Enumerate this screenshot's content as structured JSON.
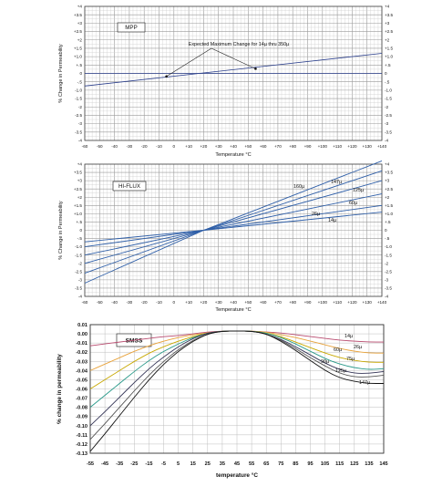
{
  "chart_data": [
    {
      "type": "line",
      "title": "MPP",
      "xlabel": "Temperature °C",
      "ylabel": "% Change in Permeability",
      "x_ticks": [
        "-60",
        "-50",
        "-40",
        "-30",
        "-20",
        "-10",
        "0",
        "+10",
        "+20",
        "+30",
        "+40",
        "+50",
        "+60",
        "+70",
        "+80",
        "+90",
        "+100",
        "+110",
        "+120",
        "+130",
        "+140"
      ],
      "y_ticks": [
        "+4",
        "+3.5",
        "+3",
        "+2.5",
        "+2",
        "+1.5",
        "+1.0",
        "+.5",
        "0",
        "-.5",
        "-1.0",
        "-1.5",
        "-2",
        "-2.5",
        "-3",
        "-3.5",
        "-4"
      ],
      "xlim": [
        -60,
        140
      ],
      "ylim": [
        -4,
        4
      ],
      "grid": true,
      "annotation": "Expected Maximum Change for 14µ thru 350µ",
      "series": [
        {
          "x": [
            -60,
            140
          ],
          "y": [
            -0.75,
            1.2
          ]
        },
        {
          "x": [
            -60,
            140
          ],
          "y": [
            0,
            0
          ]
        }
      ],
      "markers": [
        {
          "x": -5,
          "y": -0.18
        },
        {
          "x": 55,
          "y": 0.28
        }
      ]
    },
    {
      "type": "line",
      "title": "HI-FLUX",
      "xlabel": "Temperature °C",
      "ylabel": "% Change in Permeability",
      "x_ticks": [
        "-60",
        "-50",
        "-40",
        "-30",
        "-20",
        "-10",
        "0",
        "+10",
        "+20",
        "+30",
        "+40",
        "+50",
        "+60",
        "+70",
        "+80",
        "+90",
        "+100",
        "+110",
        "+120",
        "+130",
        "+140"
      ],
      "y_ticks": [
        "+4",
        "+3.5",
        "+3",
        "+2.5",
        "+2",
        "+1.5",
        "+1.0",
        "+.5",
        "0",
        "-.5",
        "-1.0",
        "-1.5",
        "-2",
        "-2.5",
        "-3",
        "-3.5",
        "-4"
      ],
      "xlim": [
        -60,
        140
      ],
      "ylim": [
        -4,
        4
      ],
      "grid": true,
      "series": [
        {
          "name": "160µ",
          "x": [
            -60,
            20,
            140
          ],
          "y": [
            -3.2,
            0,
            4.2
          ]
        },
        {
          "name": "147µ",
          "x": [
            -60,
            20,
            140
          ],
          "y": [
            -2.6,
            0,
            3.6
          ]
        },
        {
          "name": "125µ",
          "x": [
            -60,
            20,
            140
          ],
          "y": [
            -2.0,
            0,
            3.0
          ]
        },
        {
          "name": "60µ",
          "x": [
            -60,
            20,
            140
          ],
          "y": [
            -1.5,
            0,
            2.2
          ]
        },
        {
          "name": "26µ",
          "x": [
            -60,
            20,
            140
          ],
          "y": [
            -1.0,
            0,
            1.5
          ]
        },
        {
          "name": "14µ",
          "x": [
            -60,
            20,
            140
          ],
          "y": [
            -0.7,
            0,
            1.1
          ]
        }
      ]
    },
    {
      "type": "line",
      "title": "SMSS",
      "xlabel": "temperature °C",
      "ylabel": "% change in permeability",
      "x_ticks": [
        "-55",
        "-45",
        "-35",
        "-25",
        "-15",
        "-5",
        "5",
        "15",
        "25",
        "35",
        "45",
        "55",
        "65",
        "75",
        "85",
        "95",
        "105",
        "115",
        "125",
        "135",
        "145"
      ],
      "y_ticks": [
        "0.01",
        "0.00",
        "-0.01",
        "-0.02",
        "-0.03",
        "-0.04",
        "-0.05",
        "-0.06",
        "-0.07",
        "-0.08",
        "-0.09",
        "-0.10",
        "-0.11",
        "-0.12",
        "-0.13"
      ],
      "xlim": [
        -55,
        145
      ],
      "ylim": [
        -0.13,
        0.01
      ],
      "grid": true,
      "series": [
        {
          "name": "14µ",
          "color": "#b84a6e",
          "x": [
            -55,
            -45,
            -35,
            -25,
            -15,
            -5,
            5,
            15,
            25,
            35,
            45,
            55,
            65,
            75,
            85,
            95,
            105,
            115,
            125,
            135,
            145
          ],
          "y": [
            -0.013,
            -0.011,
            -0.009,
            -0.007,
            -0.005,
            -0.003,
            -0.002,
            0.0,
            0.002,
            0.003,
            0.003,
            0.003,
            0.002,
            0.001,
            -0.001,
            -0.003,
            -0.005,
            -0.007,
            -0.008,
            -0.009,
            -0.009
          ]
        },
        {
          "name": "26µ",
          "color": "#e8a23a",
          "x": [
            -55,
            -45,
            -35,
            -25,
            -15,
            -5,
            5,
            15,
            25,
            35,
            45,
            55,
            65,
            75,
            85,
            95,
            105,
            115,
            125,
            135,
            145
          ],
          "y": [
            -0.04,
            -0.033,
            -0.026,
            -0.019,
            -0.013,
            -0.008,
            -0.004,
            -0.001,
            0.001,
            0.003,
            0.003,
            0.003,
            0.002,
            -0.001,
            -0.004,
            -0.008,
            -0.012,
            -0.016,
            -0.019,
            -0.021,
            -0.021
          ]
        },
        {
          "name": "60µ",
          "color": "#c8a800",
          "x": [
            -55,
            -45,
            -35,
            -25,
            -15,
            -5,
            5,
            15,
            25,
            35,
            45,
            55,
            65,
            75,
            85,
            95,
            105,
            115,
            125,
            135,
            145
          ],
          "y": [
            -0.06,
            -0.05,
            -0.04,
            -0.03,
            -0.021,
            -0.014,
            -0.008,
            -0.003,
            0.001,
            0.003,
            0.003,
            0.003,
            0.001,
            -0.003,
            -0.009,
            -0.015,
            -0.021,
            -0.026,
            -0.029,
            -0.031,
            -0.031
          ]
        },
        {
          "name": "75µ",
          "color": "#2a9a8a",
          "x": [
            -55,
            -45,
            -35,
            -25,
            -15,
            -5,
            5,
            15,
            25,
            35,
            45,
            55,
            65,
            75,
            85,
            95,
            105,
            115,
            125,
            135,
            145
          ],
          "y": [
            -0.08,
            -0.067,
            -0.054,
            -0.041,
            -0.029,
            -0.019,
            -0.011,
            -0.004,
            0.001,
            0.003,
            0.003,
            0.003,
            0.001,
            -0.004,
            -0.011,
            -0.019,
            -0.027,
            -0.033,
            -0.037,
            -0.039,
            -0.038
          ]
        },
        {
          "name": "90µ",
          "color": "#333355",
          "x": [
            -55,
            -45,
            -35,
            -25,
            -15,
            -5,
            5,
            15,
            25,
            35,
            45,
            55,
            65,
            75,
            85,
            95,
            105,
            115,
            125,
            135,
            145
          ],
          "y": [
            -0.1,
            -0.085,
            -0.069,
            -0.053,
            -0.038,
            -0.025,
            -0.014,
            -0.005,
            0.001,
            0.003,
            0.003,
            0.003,
            0.0,
            -0.006,
            -0.014,
            -0.023,
            -0.032,
            -0.039,
            -0.043,
            -0.043,
            -0.041
          ]
        },
        {
          "name": "125µ",
          "color": "#555555",
          "x": [
            -55,
            -45,
            -35,
            -25,
            -15,
            -5,
            5,
            15,
            25,
            35,
            45,
            55,
            65,
            75,
            85,
            95,
            105,
            115,
            125,
            135,
            145
          ],
          "y": [
            -0.115,
            -0.098,
            -0.08,
            -0.062,
            -0.045,
            -0.03,
            -0.017,
            -0.007,
            0.0,
            0.003,
            0.003,
            0.003,
            0.0,
            -0.007,
            -0.016,
            -0.026,
            -0.035,
            -0.043,
            -0.047,
            -0.047,
            -0.045
          ]
        },
        {
          "name": "147µ",
          "color": "#111111",
          "x": [
            -55,
            -45,
            -35,
            -25,
            -15,
            -5,
            5,
            15,
            25,
            35,
            45,
            55,
            65,
            75,
            85,
            95,
            105,
            115,
            125,
            135,
            145
          ],
          "y": [
            -0.128,
            -0.109,
            -0.089,
            -0.069,
            -0.05,
            -0.033,
            -0.019,
            -0.008,
            0.0,
            0.003,
            0.003,
            0.003,
            0.0,
            -0.008,
            -0.018,
            -0.029,
            -0.04,
            -0.048,
            -0.052,
            -0.054,
            -0.054
          ]
        }
      ]
    }
  ]
}
